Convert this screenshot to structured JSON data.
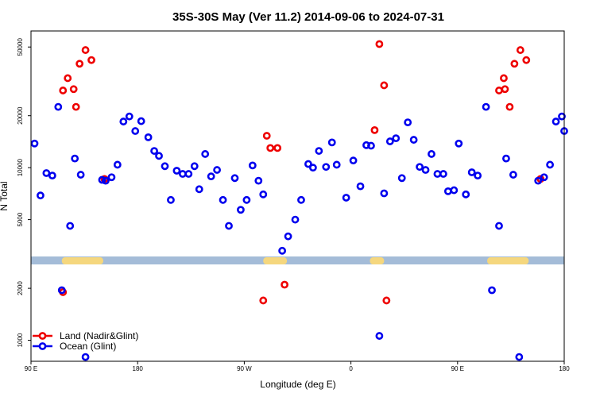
{
  "chart_data": {
    "type": "scatter",
    "title": "35S-30S May (Ver 11.2)   2014-09-06 to 2024-07-31",
    "xlabel": "Longitude (deg E)",
    "ylabel": "N Total",
    "y_scale": "log",
    "xlim": [
      90,
      540
    ],
    "ylim": [
      780,
      60000
    ],
    "x_ticks": [
      {
        "value": 90,
        "label": "90 E"
      },
      {
        "value": 180,
        "label": "180"
      },
      {
        "value": 270,
        "label": "90 W"
      },
      {
        "value": 360,
        "label": "0"
      },
      {
        "value": 450,
        "label": "90 E"
      },
      {
        "value": 540,
        "label": "180"
      }
    ],
    "y_ticks": [
      {
        "value": 1000,
        "label": "1000"
      },
      {
        "value": 2000,
        "label": "2000"
      },
      {
        "value": 5000,
        "label": "5000"
      },
      {
        "value": 10000,
        "label": "10000"
      },
      {
        "value": 20000,
        "label": "20000"
      },
      {
        "value": 50000,
        "label": "50000"
      }
    ],
    "legend_position": "bottom-left",
    "land_strip": {
      "value": 2900,
      "ocean_color": "#a4bcd8",
      "land_color": "#f5d77e",
      "land_ranges": [
        [
          116,
          151
        ],
        [
          286,
          306
        ],
        [
          376,
          388
        ],
        [
          475,
          510
        ]
      ]
    },
    "series": [
      {
        "name": "Land (Nadir&Glint)",
        "color": "#ee0000",
        "points": [
          [
            117,
            28000
          ],
          [
            121,
            33000
          ],
          [
            128,
            22500
          ],
          [
            131,
            40000
          ],
          [
            136,
            48000
          ],
          [
            141,
            42000
          ],
          [
            126,
            28500
          ],
          [
            152,
            8600
          ],
          [
            117,
            1900
          ],
          [
            286,
            1700
          ],
          [
            289,
            15300
          ],
          [
            292,
            13000
          ],
          [
            298,
            13000
          ],
          [
            304,
            2100
          ],
          [
            380,
            16500
          ],
          [
            384,
            52000
          ],
          [
            388,
            30000
          ],
          [
            390,
            1700
          ],
          [
            485,
            28000
          ],
          [
            489,
            33000
          ],
          [
            490,
            28500
          ],
          [
            494,
            22500
          ],
          [
            498,
            40000
          ],
          [
            503,
            48000
          ],
          [
            508,
            42000
          ],
          [
            520,
            8600
          ]
        ]
      },
      {
        "name": "Ocean (Glint)",
        "color": "#0000ee",
        "points": [
          [
            93,
            13800
          ],
          [
            98,
            6900
          ],
          [
            103,
            9300
          ],
          [
            108,
            9000
          ],
          [
            113,
            22500
          ],
          [
            116,
            1950
          ],
          [
            123,
            4600
          ],
          [
            127,
            11300
          ],
          [
            132,
            9100
          ],
          [
            136,
            800
          ],
          [
            150,
            8500
          ],
          [
            153,
            8400
          ],
          [
            158,
            8800
          ],
          [
            163,
            10400
          ],
          [
            168,
            18500
          ],
          [
            173,
            19800
          ],
          [
            178,
            16300
          ],
          [
            183,
            18600
          ],
          [
            189,
            15000
          ],
          [
            194,
            12500
          ],
          [
            198,
            11700
          ],
          [
            203,
            10200
          ],
          [
            208,
            6500
          ],
          [
            213,
            9600
          ],
          [
            218,
            9200
          ],
          [
            223,
            9200
          ],
          [
            228,
            10200
          ],
          [
            232,
            7500
          ],
          [
            237,
            12000
          ],
          [
            242,
            8900
          ],
          [
            247,
            9700
          ],
          [
            252,
            6500
          ],
          [
            257,
            4600
          ],
          [
            262,
            8700
          ],
          [
            267,
            5700
          ],
          [
            272,
            6500
          ],
          [
            277,
            10300
          ],
          [
            282,
            8400
          ],
          [
            286,
            7000
          ],
          [
            302,
            3300
          ],
          [
            307,
            4000
          ],
          [
            313,
            5000
          ],
          [
            318,
            6500
          ],
          [
            324,
            10500
          ],
          [
            328,
            10000
          ],
          [
            333,
            12500
          ],
          [
            339,
            10100
          ],
          [
            344,
            14000
          ],
          [
            348,
            10400
          ],
          [
            356,
            6700
          ],
          [
            362,
            11000
          ],
          [
            368,
            7800
          ],
          [
            373,
            13500
          ],
          [
            377,
            13400
          ],
          [
            384,
            1060
          ],
          [
            388,
            7100
          ],
          [
            393,
            14200
          ],
          [
            398,
            14800
          ],
          [
            403,
            8700
          ],
          [
            408,
            18300
          ],
          [
            413,
            14500
          ],
          [
            418,
            10100
          ],
          [
            423,
            9700
          ],
          [
            428,
            12000
          ],
          [
            433,
            9200
          ],
          [
            438,
            9200
          ],
          [
            442,
            7300
          ],
          [
            447,
            7400
          ],
          [
            451,
            13800
          ],
          [
            457,
            7000
          ],
          [
            462,
            9400
          ],
          [
            467,
            9000
          ],
          [
            474,
            22500
          ],
          [
            479,
            1950
          ],
          [
            485,
            4600
          ],
          [
            491,
            11300
          ],
          [
            497,
            9100
          ],
          [
            502,
            800
          ],
          [
            518,
            8400
          ],
          [
            523,
            8800
          ],
          [
            528,
            10400
          ],
          [
            533,
            18500
          ],
          [
            538,
            19800
          ],
          [
            540,
            16300
          ]
        ]
      }
    ]
  }
}
